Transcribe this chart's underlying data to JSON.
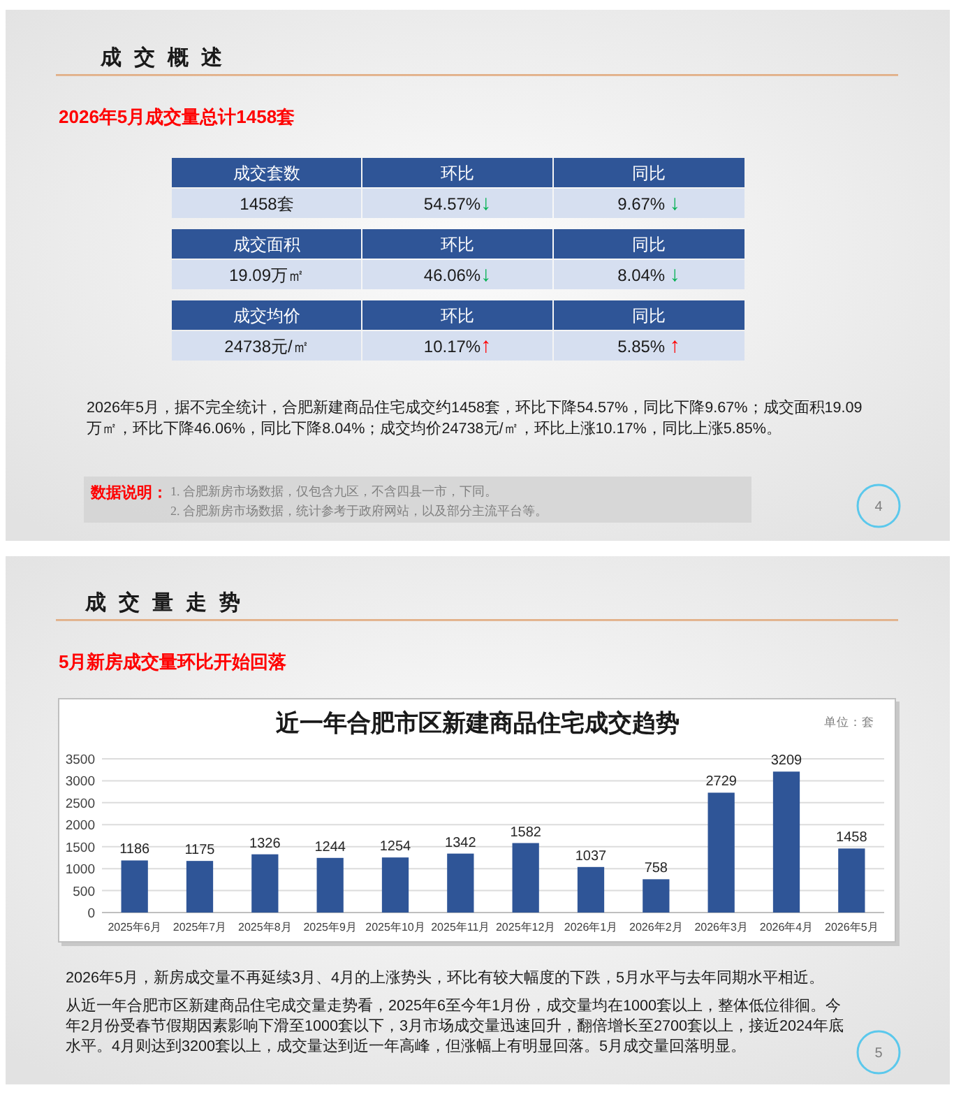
{
  "chart_data": [
    {
      "type": "other",
      "title": "成交概述",
      "subtitle": "2026年5月成交量总计1458套",
      "annotations": [
        "成交套数",
        "环比",
        "同比",
        "1458套",
        "54.57%↓",
        "9.67% ↓",
        "成交面积",
        "环比",
        "同比",
        "19.09万㎡",
        "46.06%↓",
        "8.04% ↓",
        "成交均价",
        "环比",
        "同比",
        "24738元/㎡",
        "10.17%↑",
        "5.85% ↑",
        "2026年5月，据不完全统计，合肥新建商品住宅成交约1458套，环比下降54.57%，同比下降9.67%；成交面积19.09万㎡，环比下降46.06%，同比下降8.04%；成交均价24738元/㎡，环比上涨10.17%，同比上涨5.85%。",
        "数据说明：",
        "1. 合肥新房市场数据，仅包含九区，不含四县一市，下同。",
        "2. 合肥新房市场数据，统计参考于政府网站，以及部分主流平台等。",
        "4"
      ]
    },
    {
      "type": "other",
      "title": "成交量走势",
      "subtitle": "5月新房成交量环比开始回落",
      "annotations": [
        "2026年5月，新房成交量不再延续3月、4月的上涨势头，环比有较大幅度的下跌，5月水平与去年同期水平相近。",
        "从近一年合肥市区新建商品住宅成交量走势看，2025年6至今年1月份，成交量均在1000套以上，整体低位徘徊。今年2月份受春节假期因素影响下滑至1000套以下，3月市场成交量迅速回升，翻倍增长至2700套以上，接近2024年底水平。4月则达到3200套以上，成交量达到近一年高峰，但涨幅上有明显回落。5月成交量回落明显。",
        "5"
      ]
    },
    {
      "type": "bar",
      "title": "近一年合肥市区新建商品住宅成交趋势",
      "ylabel": "单位：套",
      "categories": [
        "2025年6月",
        "2025年7月",
        "2025年8月",
        "2025年9月",
        "2025年10月",
        "2025年11月",
        "2025年12月",
        "2026年1月",
        "2026年2月",
        "2026年3月",
        "2026年4月",
        "2026年5月"
      ],
      "values": [
        1186,
        1175,
        1326,
        1244,
        1254,
        1342,
        1582,
        1037,
        758,
        2729,
        3209,
        1458
      ],
      "color": "#2f5597",
      "ylim": [
        0,
        3500
      ],
      "yticks": [
        0,
        500,
        1000,
        1500,
        2000,
        2500,
        3000,
        3500
      ],
      "grid": "y",
      "data_labels": true
    }
  ]
}
